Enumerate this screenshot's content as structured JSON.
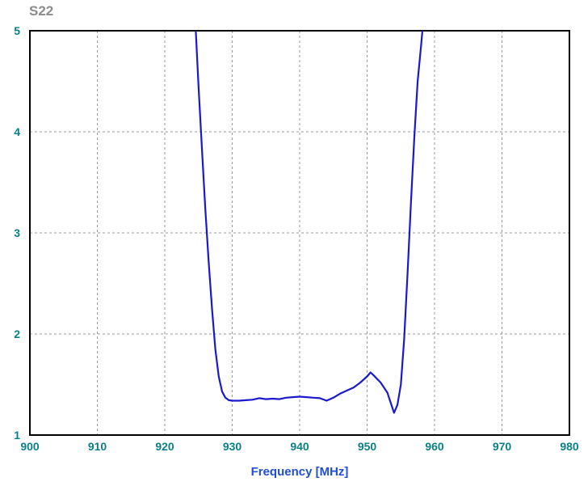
{
  "chart_data": {
    "type": "line",
    "title": "S22",
    "xlabel": "Frequency [MHz]",
    "ylabel": "",
    "xlim": [
      900,
      980
    ],
    "ylim": [
      1,
      5
    ],
    "xticks": [
      900,
      910,
      920,
      930,
      940,
      950,
      960,
      970,
      980
    ],
    "yticks": [
      1,
      2,
      3,
      4,
      5
    ],
    "x_tick_labels": [
      "900",
      "910",
      "920",
      "930",
      "940",
      "950",
      "960",
      "970",
      "980"
    ],
    "y_tick_labels": [
      "1",
      "2",
      "3",
      "4",
      "5"
    ],
    "grid": true,
    "colors": {
      "line": "#1a1acc",
      "grid": "#999999",
      "title": "#8c8c8c",
      "ticks": "#0a7f88",
      "xlabel": "#1f4fd6"
    },
    "series": [
      {
        "values": [
          [
            924.6,
            5.0
          ],
          [
            925.0,
            4.45
          ],
          [
            925.5,
            3.85
          ],
          [
            926.0,
            3.25
          ],
          [
            926.5,
            2.72
          ],
          [
            927.0,
            2.25
          ],
          [
            927.5,
            1.85
          ],
          [
            928.0,
            1.58
          ],
          [
            928.5,
            1.43
          ],
          [
            929.0,
            1.37
          ],
          [
            929.5,
            1.345
          ],
          [
            930.0,
            1.34
          ],
          [
            931.0,
            1.34
          ],
          [
            932.0,
            1.345
          ],
          [
            933.0,
            1.35
          ],
          [
            934.0,
            1.365
          ],
          [
            935.0,
            1.355
          ],
          [
            936.0,
            1.36
          ],
          [
            937.0,
            1.355
          ],
          [
            938.0,
            1.37
          ],
          [
            939.0,
            1.375
          ],
          [
            940.0,
            1.38
          ],
          [
            941.0,
            1.375
          ],
          [
            942.0,
            1.37
          ],
          [
            943.0,
            1.365
          ],
          [
            944.0,
            1.34
          ],
          [
            945.0,
            1.37
          ],
          [
            946.0,
            1.41
          ],
          [
            947.0,
            1.44
          ],
          [
            948.0,
            1.47
          ],
          [
            949.0,
            1.52
          ],
          [
            950.0,
            1.58
          ],
          [
            950.5,
            1.62
          ],
          [
            951.0,
            1.59
          ],
          [
            952.0,
            1.52
          ],
          [
            953.0,
            1.42
          ],
          [
            953.5,
            1.32
          ],
          [
            954.0,
            1.22
          ],
          [
            954.5,
            1.3
          ],
          [
            955.0,
            1.5
          ],
          [
            955.5,
            1.95
          ],
          [
            956.0,
            2.6
          ],
          [
            956.5,
            3.3
          ],
          [
            957.0,
            3.95
          ],
          [
            957.5,
            4.5
          ],
          [
            958.0,
            4.85
          ],
          [
            958.2,
            5.0
          ]
        ]
      }
    ]
  }
}
